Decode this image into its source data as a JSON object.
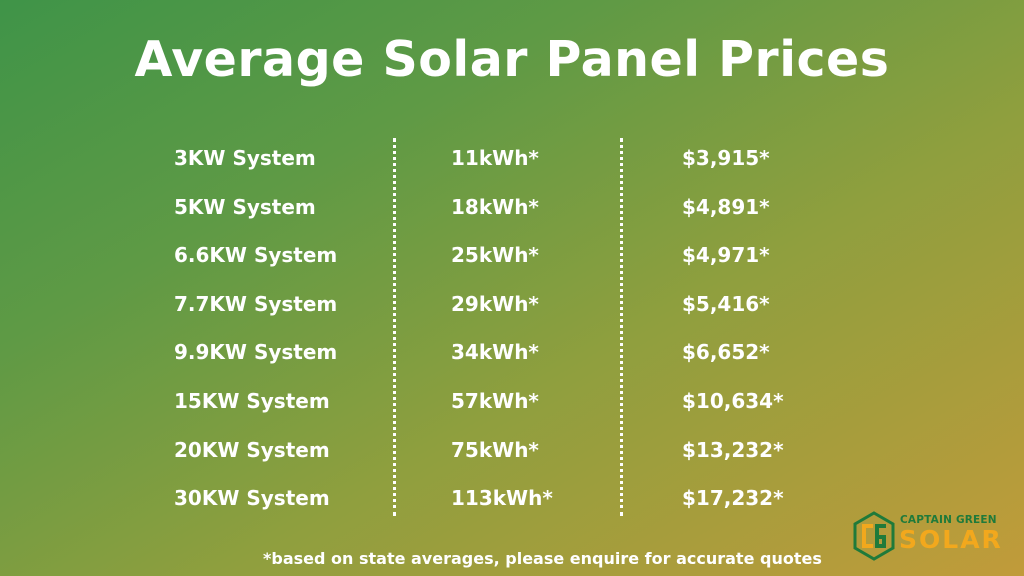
{
  "title": "Average Solar Panel Prices",
  "table": {
    "systems": [
      "3KW System",
      "5KW System",
      "6.6KW System",
      "7.7KW System",
      "9.9KW System",
      "15KW System",
      "20KW System",
      "30KW System"
    ],
    "energy": [
      "11kWh*",
      "18kWh*",
      "25kWh*",
      "29kWh*",
      "34kWh*",
      "57kWh*",
      "75kWh*",
      "113kWh*"
    ],
    "prices": [
      "$3,915*",
      "$4,891*",
      "$4,971*",
      "$5,416*",
      "$6,652*",
      "$10,634*",
      "$13,232*",
      "$17,232*"
    ]
  },
  "footnote": "*based on state averages, please enquire for accurate quotes",
  "logo": {
    "top_text": "CAPTAIN GREEN",
    "bottom_text": "SOLAR",
    "green": "#1f7a3a",
    "orange": "#f2a81d"
  }
}
